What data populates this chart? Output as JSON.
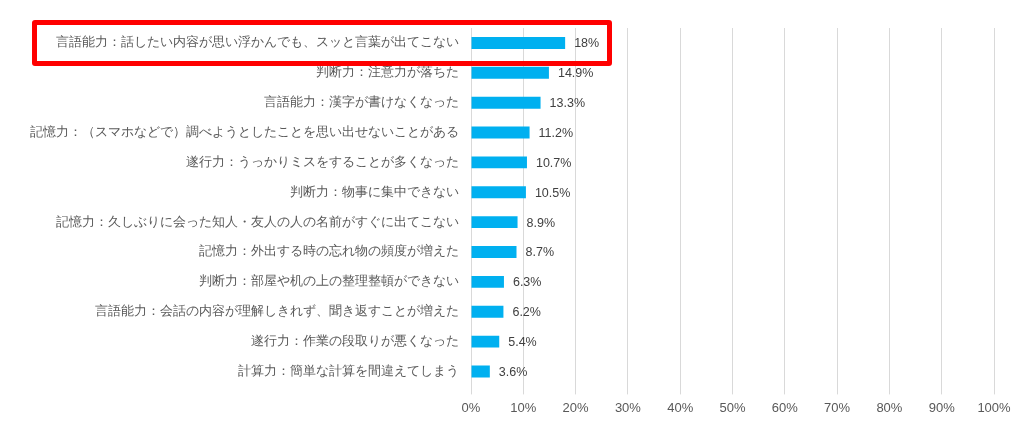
{
  "chart_data": {
    "type": "bar",
    "orientation": "horizontal",
    "categories": [
      "言語能力：話したい内容が思い浮かんでも、スッと言葉が出てこない",
      "判断力：注意力が落ちた",
      "言語能力：漢字が書けなくなった",
      "記憶力：（スマホなどで）調べようとしたことを思い出せないことがある",
      "遂行力：うっかりミスをすることが多くなった",
      "判断力：物事に集中できない",
      "記憶力：久しぶりに会った知人・友人の人の名前がすぐに出てこない",
      "記憶力：外出する時の忘れ物の頻度が増えた",
      "判断力：部屋や机の上の整理整頓ができない",
      "言語能力：会話の内容が理解しきれず、聞き返すことが増えた",
      "遂行力：作業の段取りが悪くなった",
      "計算力：簡単な計算を間違えてしまう"
    ],
    "values": [
      18,
      14.9,
      13.3,
      11.2,
      10.7,
      10.5,
      8.9,
      8.7,
      6.3,
      6.2,
      5.4,
      3.6
    ],
    "value_labels": [
      "18%",
      "14.9%",
      "13.3%",
      "11.2%",
      "10.7%",
      "10.5%",
      "8.9%",
      "8.7%",
      "6.3%",
      "6.2%",
      "5.4%",
      "3.6%"
    ],
    "color": "#00b0f0",
    "xlim": [
      0,
      100
    ],
    "xticks": [
      {
        "value": 0,
        "label": "0%"
      },
      {
        "value": 10,
        "label": "10%"
      },
      {
        "value": 20,
        "label": "20%"
      },
      {
        "value": 30,
        "label": "30%"
      },
      {
        "value": 40,
        "label": "40%"
      },
      {
        "value": 50,
        "label": "50%"
      },
      {
        "value": 60,
        "label": "60%"
      },
      {
        "value": 70,
        "label": "70%"
      },
      {
        "value": 80,
        "label": "80%"
      },
      {
        "value": 90,
        "label": "90%"
      },
      {
        "value": 100,
        "label": "100%"
      }
    ],
    "grid": "x"
  }
}
